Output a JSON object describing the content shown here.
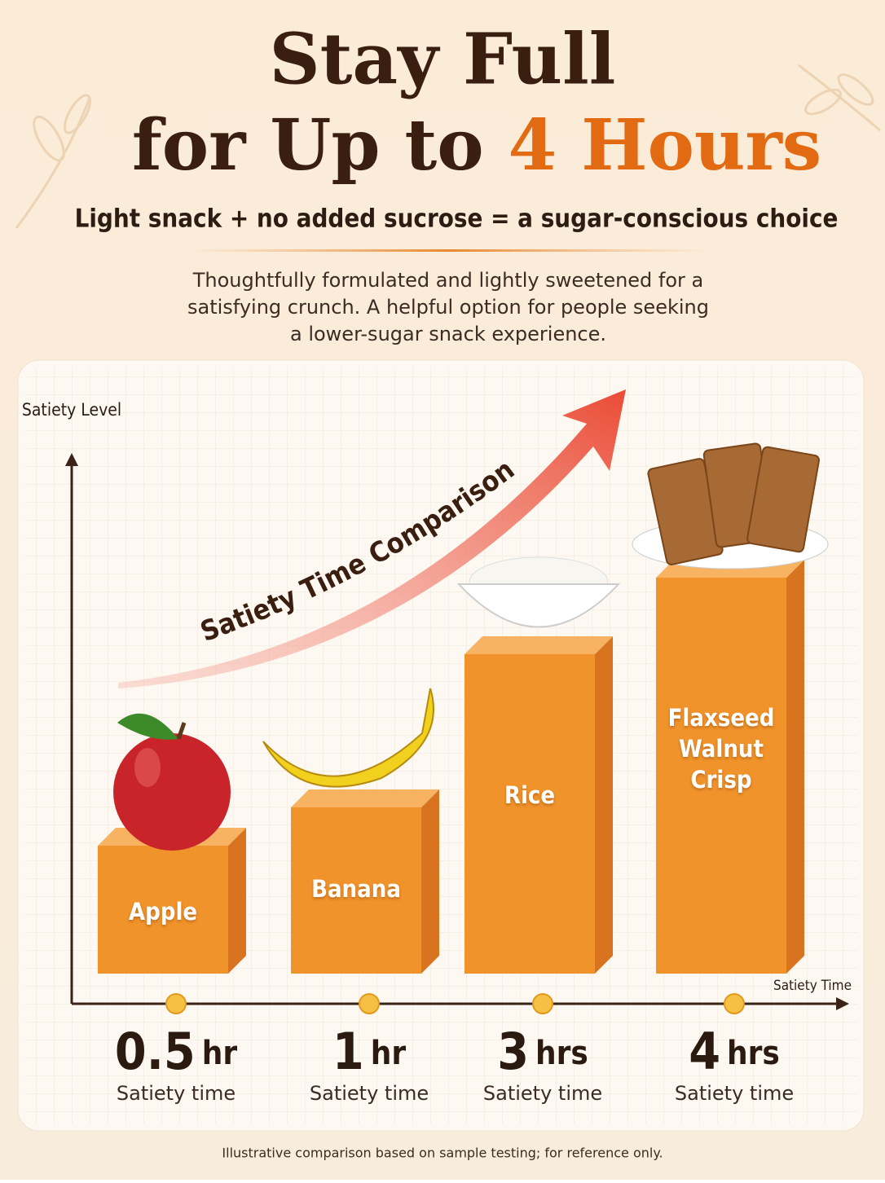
{
  "header": {
    "title_line1": "Stay Full",
    "title_line2": "for Up to",
    "title_highlight": "4 Hours",
    "subtitle": "Light snack + no added sucrose = a sugar-conscious choice",
    "description": "Thoughtfully formulated and lightly sweetened for a satisfying crunch. A helpful option for people seeking a lower-sugar snack experience."
  },
  "chart_data": {
    "type": "bar",
    "annotation": "Satiety Time Comparison",
    "y_label": "Satiety Level",
    "x_label": "Satiety Time",
    "categories": [
      "Apple",
      "Banana",
      "Rice",
      "Flaxseed Walnut Crisp"
    ],
    "values": [
      0.5,
      1,
      3,
      4
    ],
    "value_labels": [
      "0.5 hr",
      "1 hr",
      "3 hrs",
      "4 hrs"
    ],
    "value_sublabel": "Satiety time",
    "color": "#f0932b"
  },
  "footnote": "Illustrative comparison based on sample testing; for reference only."
}
